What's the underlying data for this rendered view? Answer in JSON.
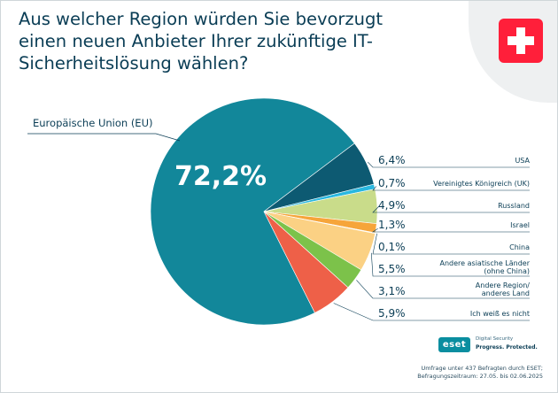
{
  "title": "Aus welcher Region würden Sie bevorzugt einen neuen Anbieter Ihrer zukünftige IT-Sicherheitslösung wählen?",
  "footnote_line1": "Umfrage unter 437 Befragten durch ESET;",
  "footnote_line2": "Befragungszeitraum: 27.05. bis 02.06.2025",
  "eset": {
    "badge": "eset",
    "tagline1": "Digital Security",
    "tagline2": "Progress. Protected."
  },
  "flag_icon": "swiss-flag-icon",
  "chart_data": {
    "type": "pie",
    "slices": [
      {
        "label": "Europäische Union (EU)",
        "value": 72.2,
        "display": "72,2%",
        "color": "#12879a"
      },
      {
        "label": "USA",
        "value": 6.4,
        "display": "6,4%",
        "color": "#0d5a72"
      },
      {
        "label": "Vereinigtes Königreich (UK)",
        "value": 0.7,
        "display": "0,7%",
        "color": "#29b8e0"
      },
      {
        "label": "Russland",
        "value": 4.9,
        "display": "4,9%",
        "color": "#c9dc8a"
      },
      {
        "label": "Israel",
        "value": 1.3,
        "display": "1,3%",
        "color": "#f6a53a"
      },
      {
        "label": "China",
        "value": 0.1,
        "display": "0,1%",
        "color": "#f3cf72"
      },
      {
        "label": "Andere asiatische Länder (ohne China)",
        "value": 5.5,
        "display": "5,5%",
        "color": "#fbd184"
      },
      {
        "label": "Andere Region/ anderes Land",
        "value": 3.1,
        "display": "3,1%",
        "color": "#7cc24a"
      },
      {
        "label": "Ich weiß es nicht",
        "value": 5.9,
        "display": "5,9%",
        "color": "#ee6048"
      }
    ],
    "legend_position": "right"
  }
}
